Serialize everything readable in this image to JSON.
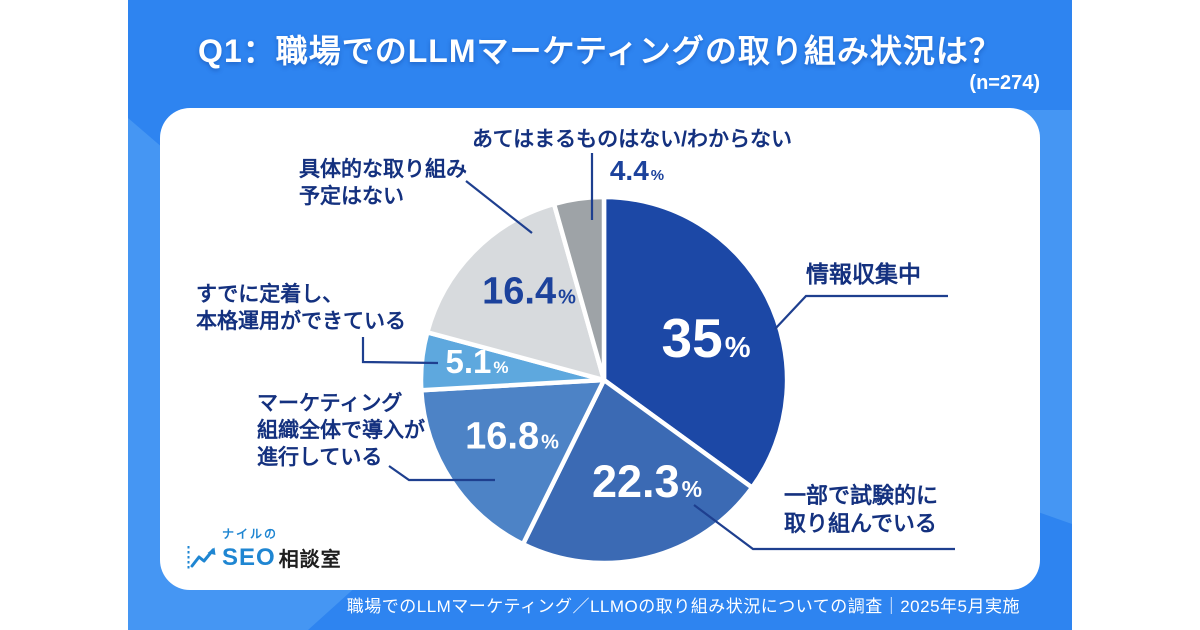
{
  "title": "Q1：職場でのLLMマーケティングの取り組み状況は？",
  "sample_size": "(n=274)",
  "footer": "職場でのLLMマーケティング／LLMOの取り組み状況についての調査｜2025年5月実施",
  "percent_mark": "%",
  "logo": {
    "reading": "ナイルの",
    "brand_en": "SEO",
    "brand_jp": "相談室",
    "icon": "line-chart-arrow-icon"
  },
  "colors": {
    "banner_blue": "#2e84f0",
    "banner_light_blue": "#4596f3",
    "card_white": "#ffffff",
    "label_navy": "#14317f",
    "leader_navy": "#1e3f8f",
    "gray_value_blue": "#1c429c"
  },
  "chart_data": {
    "type": "pie",
    "title": "Q1：職場でのLLMマーケティングの取り組み状況は？",
    "n": 274,
    "unit": "%",
    "start_angle_deg": 0,
    "direction": "clockwise",
    "legend_position": "outside-callouts",
    "slices": [
      {
        "label": "情報収集中",
        "value": 35,
        "display": "35",
        "color": "#1c48a6",
        "value_color": "#ffffff"
      },
      {
        "label": "一部で試験的に\n取り組んでいる",
        "value": 22.3,
        "display": "22.3",
        "color": "#3b6ab4",
        "value_color": "#ffffff"
      },
      {
        "label": "マーケティング\n組織全体で導入が\n進行している",
        "value": 16.8,
        "display": "16.8",
        "color": "#4d83c6",
        "value_color": "#ffffff"
      },
      {
        "label": "すでに定着し、\n本格運用ができている",
        "value": 5.1,
        "display": "5.1",
        "color": "#5ea8de",
        "value_color": "#ffffff"
      },
      {
        "label": "具体的な取り組み\n予定はない",
        "value": 16.4,
        "display": "16.4",
        "color": "#d7dadd",
        "value_color": "#1c429c"
      },
      {
        "label": "あてはまるものはない/わからない",
        "value": 4.4,
        "display": "4.4",
        "color": "#9ea3a7",
        "value_color": "#1c429c"
      }
    ]
  }
}
